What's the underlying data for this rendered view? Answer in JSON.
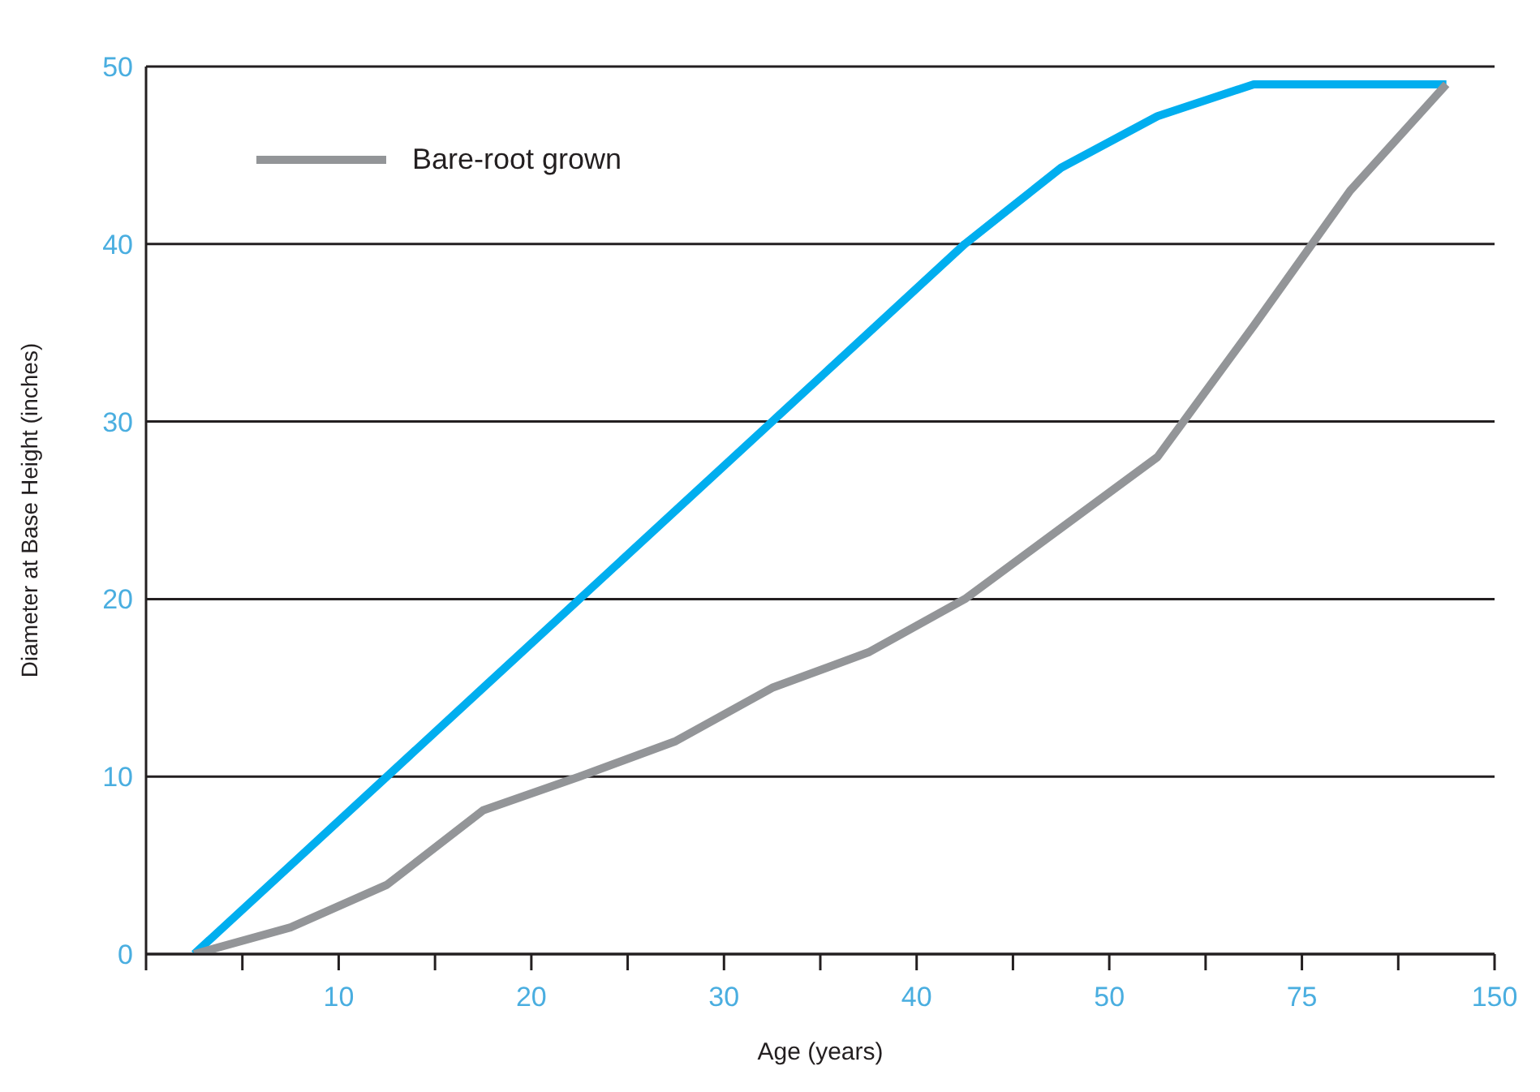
{
  "chart_data": {
    "type": "line",
    "xlabel": "Age (years)",
    "ylabel": "Diameter at Base Height (inches)",
    "categories": [
      null,
      null,
      null,
      null,
      "10",
      null,
      null,
      null,
      "20",
      null,
      null,
      null,
      "30",
      null,
      null,
      null,
      "40",
      null,
      null,
      null,
      "50",
      null,
      null,
      null,
      "75",
      null,
      null,
      null,
      "150"
    ],
    "ylim": [
      0,
      50
    ],
    "yticks": [
      0,
      10,
      20,
      30,
      40,
      50
    ],
    "grid": "y",
    "legend": "top left",
    "marker": "none",
    "line_style": "solid",
    "series": [
      {
        "color": "#00aeef",
        "values": [
          null,
          0,
          null,
          5,
          null,
          10,
          null,
          15,
          null,
          20,
          null,
          25,
          null,
          30,
          null,
          35,
          null,
          40,
          null,
          44.3,
          null,
          47.2,
          null,
          49,
          null,
          49,
          null,
          49,
          null
        ]
      },
      {
        "name": "Bare-root grown",
        "color": "#939598",
        "values": [
          null,
          0,
          null,
          1.5,
          null,
          3.9,
          null,
          8.1,
          null,
          10,
          null,
          12,
          null,
          15,
          null,
          17,
          null,
          20,
          null,
          24,
          null,
          28,
          null,
          35.4,
          null,
          43,
          null,
          49,
          null
        ]
      }
    ]
  }
}
